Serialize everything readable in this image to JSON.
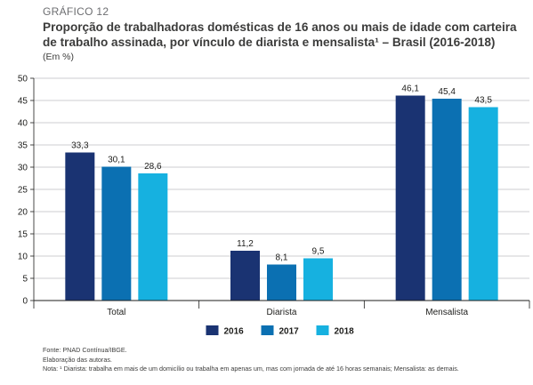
{
  "header": {
    "figure_label": "GRÁFICO 12",
    "title": "Proporção de trabalhadoras domésticas de 16 anos ou mais de idade com carteira de trabalho assinada, por vínculo de diarista e mensalista¹ – Brasil (2016-2018)",
    "unit": "(Em %)"
  },
  "chart_data": {
    "type": "bar",
    "title": "Proporção de trabalhadoras domésticas de 16 anos ou mais de idade com carteira de trabalho assinada, por vínculo de diarista e mensalista¹ – Brasil (2016-2018)",
    "ylabel": "",
    "xlabel": "",
    "categories": [
      "Total",
      "Diarista",
      "Mensalista"
    ],
    "series": [
      {
        "name": "2016",
        "color": "#1a3372",
        "values": [
          33.3,
          11.2,
          46.1
        ]
      },
      {
        "name": "2017",
        "color": "#0b70b2",
        "values": [
          30.1,
          8.1,
          45.4
        ]
      },
      {
        "name": "2018",
        "color": "#16b1e0",
        "values": [
          28.6,
          9.5,
          43.5
        ]
      }
    ],
    "value_labels": [
      [
        "33,3",
        "11,2",
        "46,1"
      ],
      [
        "30,1",
        "8,1",
        "45,4"
      ],
      [
        "28,6",
        "9,5",
        "43,5"
      ]
    ],
    "yticks": [
      0,
      5,
      10,
      15,
      20,
      25,
      30,
      35,
      40,
      45,
      50
    ],
    "ylim": [
      0,
      50
    ],
    "grid": true,
    "legend_position": "bottom-center"
  },
  "notes": {
    "source": "Fonte: PNAD Contínua/IBGE.",
    "elaboration": "Elaboração das autoras.",
    "footnote": "Nota: ¹ Diarista: trabalha em mais de um domicílio ou trabalha em apenas um, mas com jornada de até 16 horas semanais; Mensalista: as demais."
  }
}
